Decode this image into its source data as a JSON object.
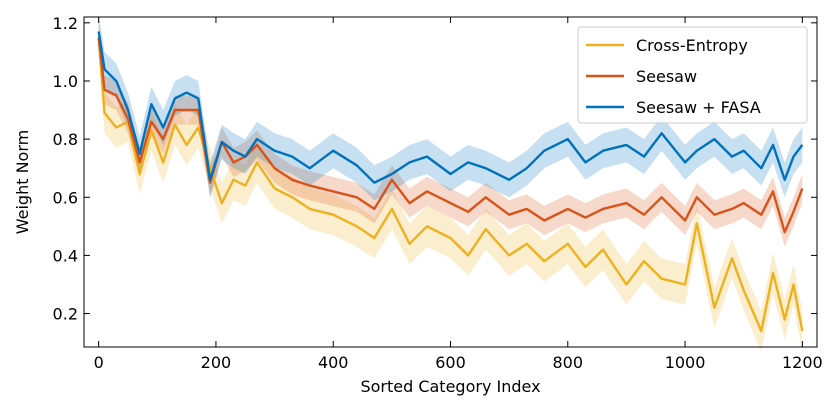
{
  "chart_data": {
    "type": "line",
    "xlabel": "Sorted Category Index",
    "ylabel": "Weight Norm",
    "xlim": [
      -25,
      1225
    ],
    "ylim": [
      0.085,
      1.22
    ],
    "xticks": [
      0,
      200,
      400,
      600,
      800,
      1000,
      1200
    ],
    "xtick_labels": [
      "0",
      "200",
      "400",
      "600",
      "800",
      "1000",
      "1200"
    ],
    "yticks": [
      0.2,
      0.4,
      0.6,
      0.8,
      1.0,
      1.2
    ],
    "ytick_labels": [
      "0.2",
      "0.4",
      "0.6",
      "0.8",
      "1.0",
      "1.2"
    ],
    "grid": false,
    "legend_position": "top-right",
    "series": [
      {
        "name": "Cross-Entropy",
        "color": "#EDB120",
        "x": [
          0,
          10,
          30,
          50,
          70,
          90,
          110,
          130,
          150,
          170,
          190,
          210,
          230,
          250,
          270,
          300,
          330,
          360,
          400,
          440,
          470,
          500,
          530,
          560,
          600,
          630,
          660,
          700,
          730,
          760,
          800,
          830,
          860,
          900,
          930,
          960,
          1000,
          1020,
          1050,
          1080,
          1100,
          1130,
          1150,
          1170,
          1185,
          1200
        ],
        "y": [
          1.15,
          0.89,
          0.84,
          0.86,
          0.68,
          0.83,
          0.72,
          0.85,
          0.78,
          0.84,
          0.7,
          0.58,
          0.66,
          0.64,
          0.72,
          0.63,
          0.6,
          0.56,
          0.54,
          0.5,
          0.46,
          0.56,
          0.44,
          0.5,
          0.46,
          0.4,
          0.49,
          0.4,
          0.44,
          0.38,
          0.44,
          0.36,
          0.42,
          0.3,
          0.38,
          0.32,
          0.3,
          0.51,
          0.22,
          0.39,
          0.28,
          0.14,
          0.34,
          0.18,
          0.3,
          0.14
        ]
      },
      {
        "name": "Seesaw",
        "color": "#D95319",
        "x": [
          0,
          10,
          30,
          50,
          70,
          90,
          110,
          130,
          150,
          170,
          190,
          210,
          230,
          250,
          270,
          300,
          330,
          360,
          400,
          440,
          470,
          500,
          530,
          560,
          600,
          630,
          660,
          700,
          730,
          760,
          800,
          830,
          860,
          900,
          930,
          960,
          1000,
          1020,
          1050,
          1080,
          1100,
          1130,
          1150,
          1170,
          1185,
          1200
        ],
        "y": [
          1.15,
          0.97,
          0.95,
          0.87,
          0.72,
          0.86,
          0.8,
          0.9,
          0.9,
          0.9,
          0.65,
          0.79,
          0.72,
          0.74,
          0.78,
          0.7,
          0.66,
          0.64,
          0.62,
          0.6,
          0.56,
          0.66,
          0.58,
          0.62,
          0.58,
          0.55,
          0.6,
          0.54,
          0.56,
          0.52,
          0.56,
          0.53,
          0.56,
          0.58,
          0.54,
          0.6,
          0.52,
          0.6,
          0.54,
          0.56,
          0.58,
          0.54,
          0.62,
          0.48,
          0.55,
          0.63
        ]
      },
      {
        "name": "Seesaw + FASA",
        "color": "#0072BD",
        "x": [
          0,
          10,
          30,
          50,
          70,
          90,
          110,
          130,
          150,
          170,
          190,
          210,
          230,
          250,
          270,
          300,
          330,
          360,
          400,
          440,
          470,
          500,
          530,
          560,
          600,
          630,
          660,
          700,
          730,
          760,
          800,
          830,
          860,
          900,
          930,
          960,
          1000,
          1020,
          1050,
          1080,
          1100,
          1130,
          1150,
          1170,
          1185,
          1200
        ],
        "y": [
          1.17,
          1.04,
          1.0,
          0.9,
          0.75,
          0.92,
          0.84,
          0.94,
          0.96,
          0.94,
          0.66,
          0.79,
          0.76,
          0.74,
          0.8,
          0.76,
          0.74,
          0.7,
          0.76,
          0.71,
          0.65,
          0.68,
          0.72,
          0.74,
          0.68,
          0.72,
          0.7,
          0.66,
          0.7,
          0.76,
          0.8,
          0.72,
          0.76,
          0.78,
          0.74,
          0.82,
          0.72,
          0.76,
          0.8,
          0.74,
          0.76,
          0.7,
          0.78,
          0.66,
          0.74,
          0.78
        ]
      }
    ]
  }
}
